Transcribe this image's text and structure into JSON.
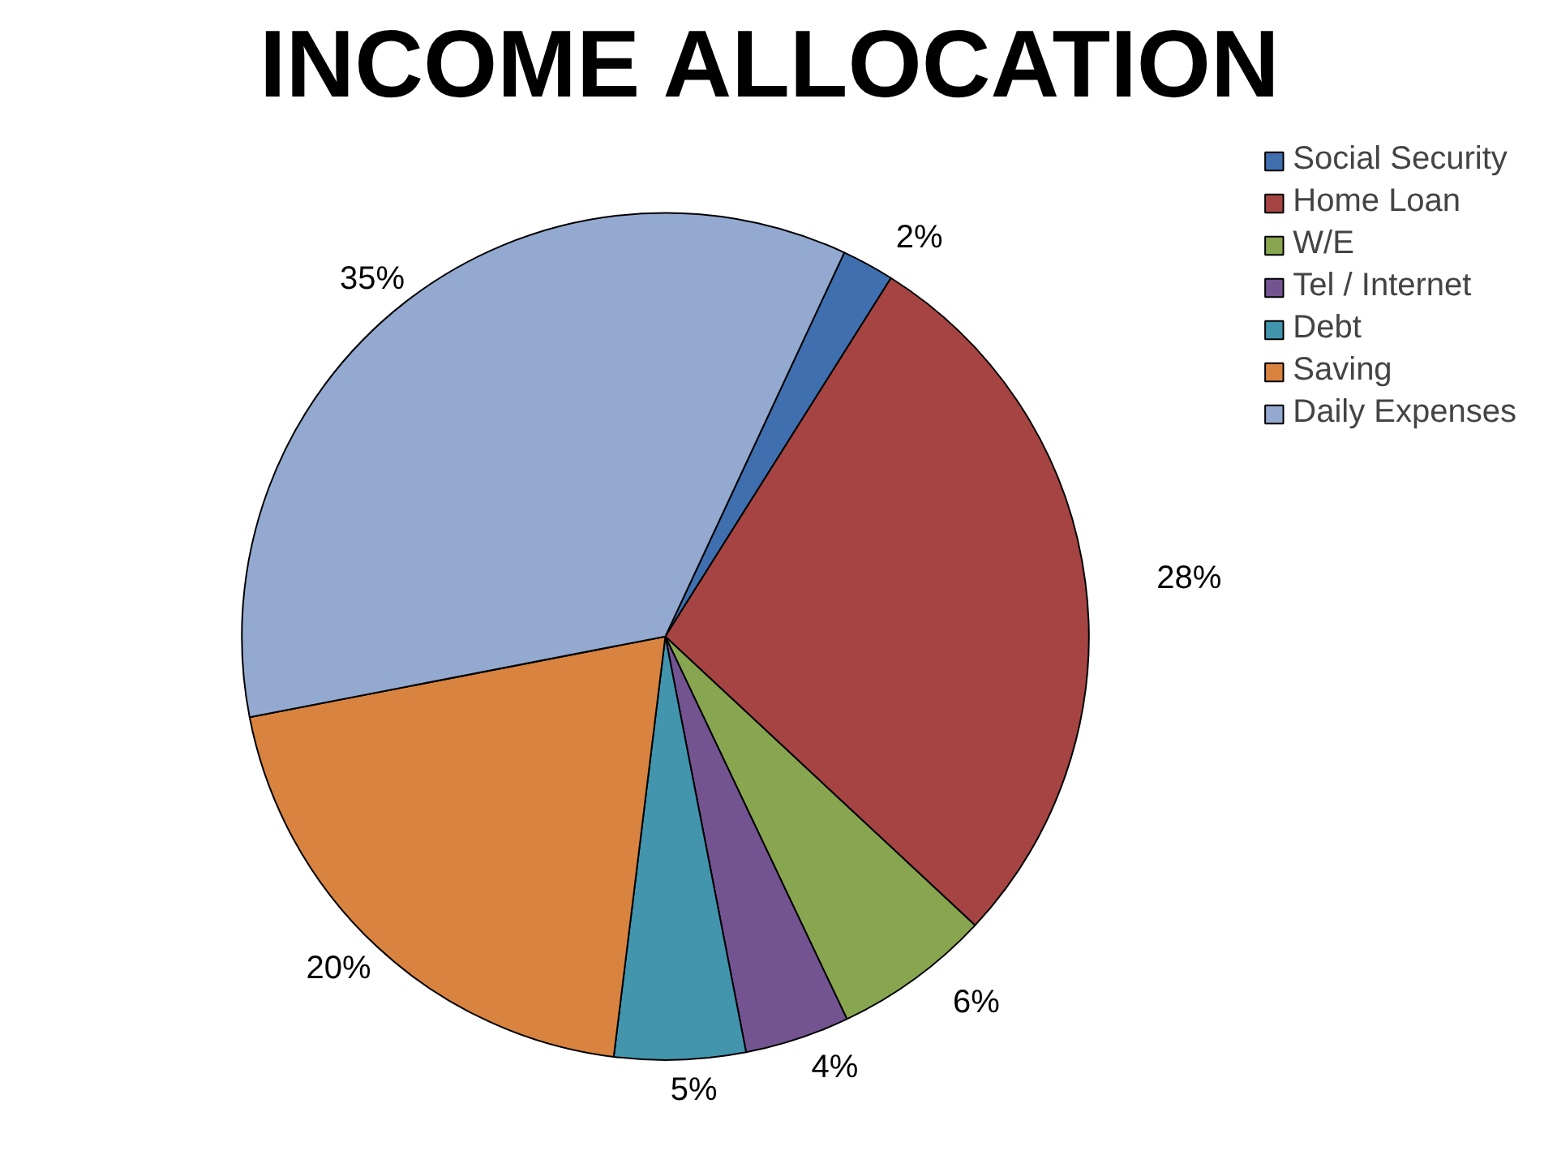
{
  "chart_data": {
    "type": "pie",
    "title": "INCOME ALLOCATION",
    "categories": [
      "Social Security",
      "Home Loan",
      "W/E",
      "Tel / Internet",
      "Debt",
      "Saving",
      "Daily Expenses"
    ],
    "values": [
      2,
      28,
      6,
      4,
      5,
      20,
      35
    ],
    "colors": [
      "#3f6fae",
      "#a64444",
      "#88a550",
      "#735490",
      "#4295ad",
      "#d88340",
      "#93a9d0"
    ],
    "value_labels": [
      "2%",
      "28%",
      "6%",
      "4%",
      "5%",
      "20%",
      "35%"
    ],
    "legend": "right"
  }
}
